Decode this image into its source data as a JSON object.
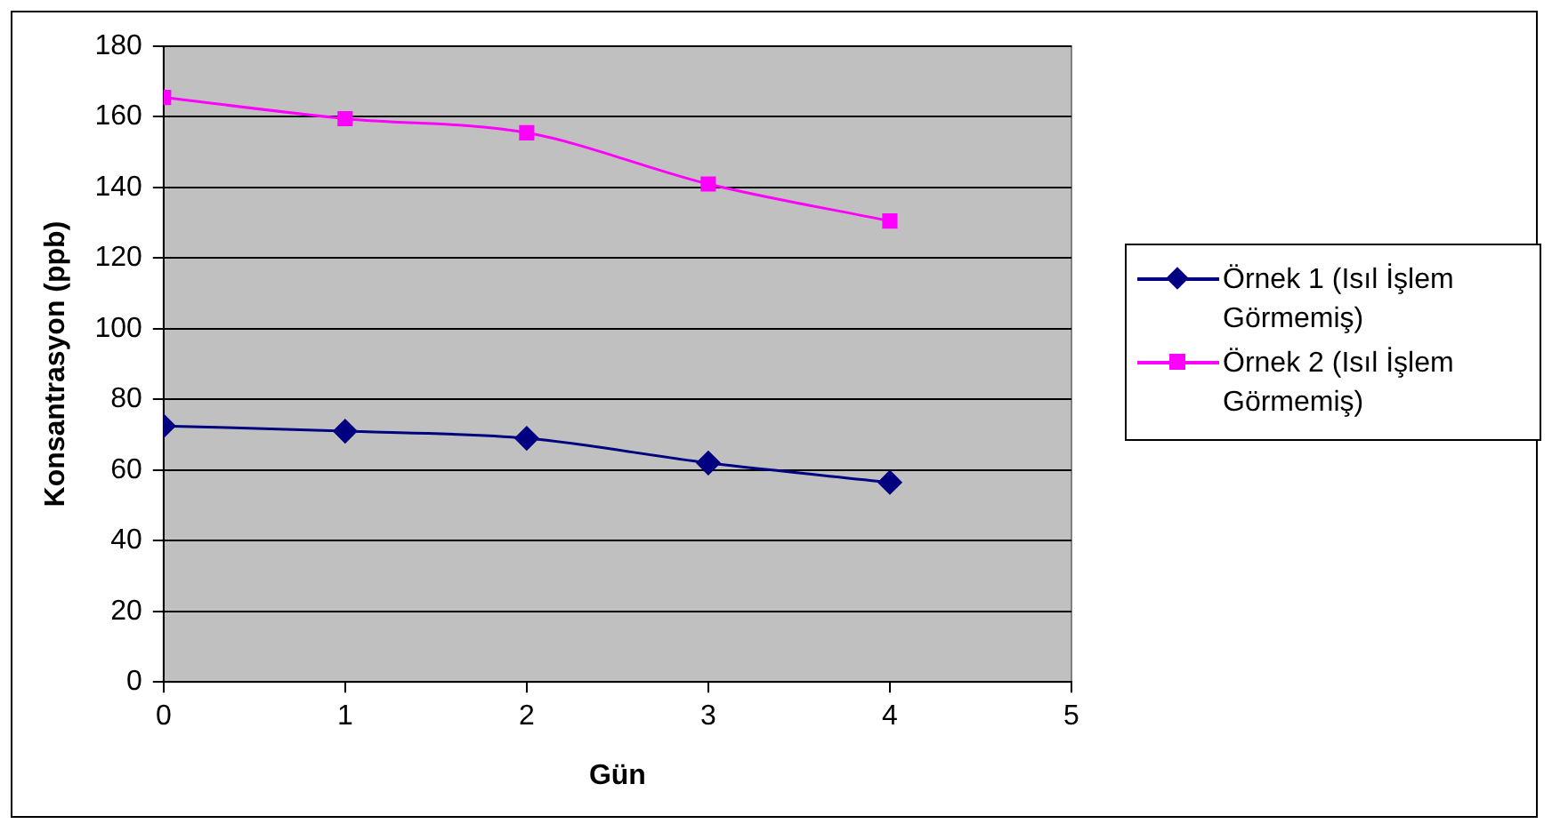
{
  "chart_data": {
    "type": "line",
    "xlabel": "Gün",
    "ylabel": "Konsantrasyon (ppb)",
    "x": [
      0,
      1,
      2,
      3,
      4
    ],
    "series": [
      {
        "name": "Örnek 1 (Isıl İşlem Görmemiş)",
        "color": "#000080",
        "marker": "diamond",
        "values": [
          72.5,
          71,
          69,
          62,
          56.5
        ]
      },
      {
        "name": "Örnek 2 (Isıl İşlem Görmemiş)",
        "color": "#ff00ff",
        "marker": "square",
        "values": [
          165.5,
          159.5,
          155.5,
          141,
          130.5
        ]
      }
    ],
    "xlim": [
      0,
      5
    ],
    "xticks": [
      0,
      1,
      2,
      3,
      4,
      5
    ],
    "ylim": [
      0,
      180
    ],
    "yticks": [
      0,
      20,
      40,
      60,
      80,
      100,
      120,
      140,
      160,
      180
    ],
    "grid": "y",
    "legend": "right",
    "line_style": "solid"
  }
}
